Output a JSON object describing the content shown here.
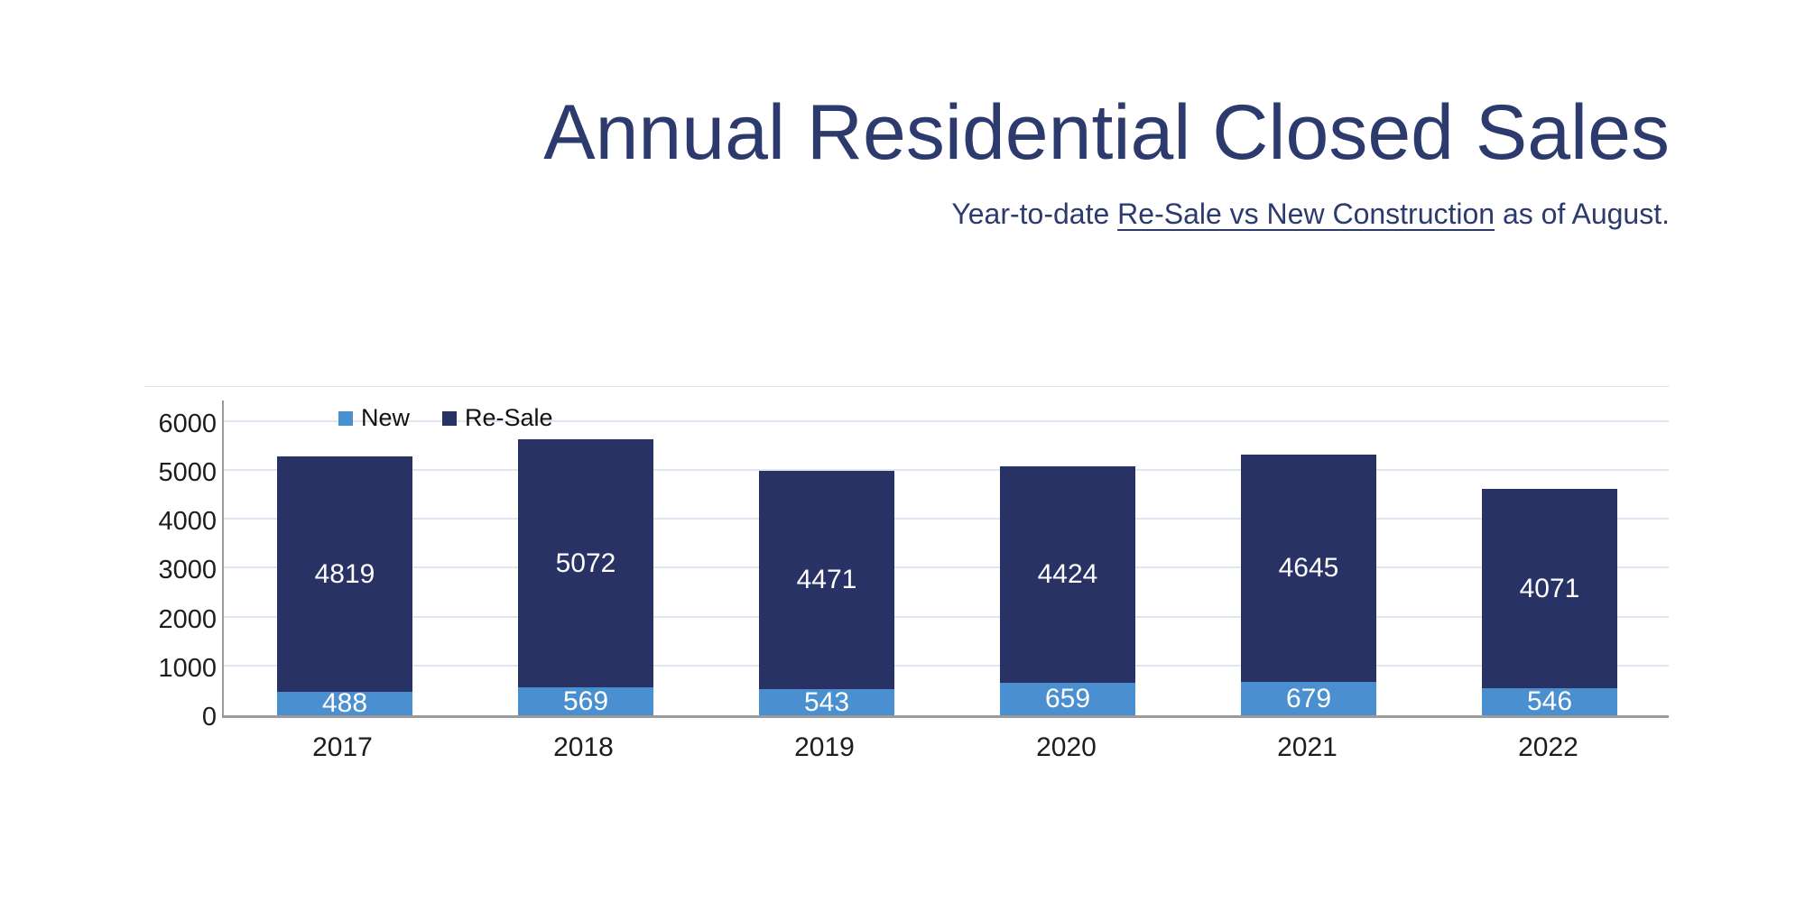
{
  "header": {
    "title": "Annual Residential Closed Sales",
    "subtitle_prefix": "Year-to-date ",
    "subtitle_underlined": "Re-Sale vs New Construction",
    "subtitle_suffix": " as of August.",
    "title_color": "#2d3a6e"
  },
  "chart_data": {
    "type": "bar",
    "stacked": true,
    "title": "Annual Residential Closed Sales",
    "subtitle": "Year-to-date Re-Sale vs New Construction as of August.",
    "categories": [
      "2017",
      "2018",
      "2019",
      "2020",
      "2021",
      "2022"
    ],
    "series": [
      {
        "name": "New",
        "color": "#4a90d0",
        "values": [
          488,
          569,
          543,
          659,
          679,
          546
        ]
      },
      {
        "name": "Re-Sale",
        "color": "#293264",
        "values": [
          4819,
          5072,
          4471,
          4424,
          4645,
          4071
        ]
      }
    ],
    "xlabel": "",
    "ylabel": "",
    "ylim": [
      0,
      6000
    ],
    "ytick_interval": 1000,
    "yticks": [
      0,
      1000,
      2000,
      3000,
      4000,
      5000,
      6000
    ],
    "grid": "horizontal",
    "gridline_color": "#dde6f1",
    "axis_line_color": "#9b9b9b",
    "bar_label_color": "#ffffff",
    "legend_position": "top-left-inside",
    "legend_entries": [
      "New",
      "Re-Sale"
    ]
  }
}
